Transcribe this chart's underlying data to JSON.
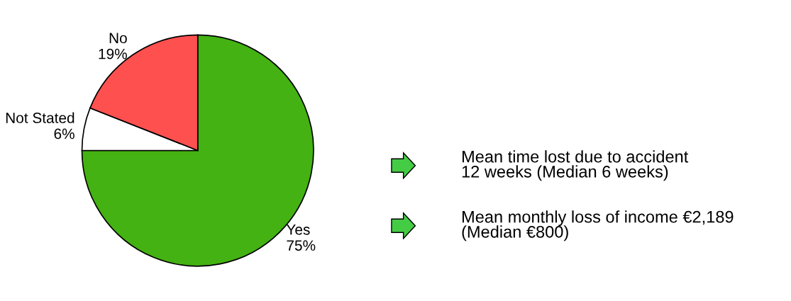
{
  "chart_data": {
    "type": "pie",
    "categories": [
      "Yes",
      "Not Stated",
      "No"
    ],
    "values": [
      75,
      6,
      19
    ],
    "value_labels": [
      "75%",
      "6%",
      "19%"
    ],
    "colors": [
      "#44b212",
      "#ffffff",
      "#ff5050"
    ],
    "annotations": [
      "Mean time lost due to accident\n12 weeks (Median 6 weeks)",
      "Mean monthly loss of income €2,189\n(Median €800)"
    ]
  }
}
